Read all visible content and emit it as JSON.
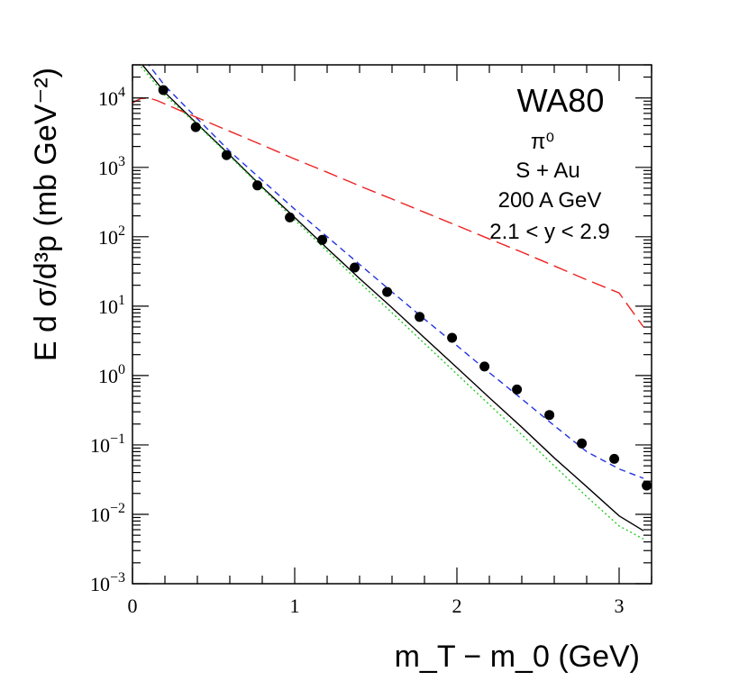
{
  "chart_data": {
    "type": "scatter",
    "title": "WA80",
    "annotations": [
      "π⁰",
      "S + Au",
      "200 A GeV",
      "2.1 < y < 2.9"
    ],
    "xlabel": "m_T − m_0 (GeV)",
    "ylabel": "E d σ/d³p (mb GeV⁻²)",
    "xlim": [
      0,
      3.2
    ],
    "ylim": [
      0.001,
      30000
    ],
    "yscale": "log",
    "x_ticks": [
      "0",
      "1",
      "2",
      "3"
    ],
    "y_ticks": [
      "10^-3",
      "10^-2",
      "10^-1",
      "10^0",
      "10^1",
      "10^2",
      "10^3",
      "10^4"
    ],
    "grid": false,
    "series": [
      {
        "kind": "points",
        "marker": "filled-circle",
        "color": "#000000",
        "x": [
          0.19,
          0.39,
          0.58,
          0.77,
          0.97,
          1.17,
          1.37,
          1.57,
          1.77,
          1.97,
          2.17,
          2.37,
          2.57,
          2.77,
          2.97,
          3.17
        ],
        "y": [
          13000,
          3800,
          1500,
          550,
          190,
          90,
          36,
          16,
          7,
          3.5,
          1.35,
          0.63,
          0.27,
          0.105,
          0.063,
          0.026
        ]
      },
      {
        "kind": "curve",
        "style": "solid",
        "color": "#000000",
        "x": [
          0,
          0.2,
          0.4,
          0.6,
          0.8,
          1.0,
          1.2,
          1.4,
          1.6,
          1.8,
          2.0,
          2.2,
          2.4,
          2.6,
          2.8,
          3.0,
          3.15
        ],
        "y": [
          45000,
          12000,
          4200,
          1500,
          520,
          190,
          68,
          25,
          9.5,
          3.5,
          1.3,
          0.48,
          0.18,
          0.065,
          0.025,
          0.0095,
          0.0058
        ]
      },
      {
        "kind": "curve",
        "style": "dotted",
        "color": "#22cc22",
        "x": [
          0,
          0.2,
          0.4,
          0.6,
          0.8,
          1.0,
          1.2,
          1.4,
          1.6,
          1.8,
          2.0,
          2.2,
          2.4,
          2.6,
          2.8,
          3.0,
          3.15
        ],
        "y": [
          40000,
          11000,
          4100,
          1450,
          500,
          175,
          62,
          22,
          8,
          2.9,
          1.05,
          0.38,
          0.14,
          0.05,
          0.018,
          0.0068,
          0.0044
        ]
      },
      {
        "kind": "curve",
        "style": "dashed",
        "color": "#2233dd",
        "x": [
          0,
          0.2,
          0.4,
          0.6,
          0.8,
          1.0,
          1.2,
          1.4,
          1.6,
          1.8,
          2.0,
          2.2,
          2.4,
          2.6,
          2.8,
          3.0,
          3.15
        ],
        "y": [
          60000,
          15000,
          5000,
          1700,
          650,
          250,
          100,
          40,
          16,
          6.5,
          2.7,
          1.1,
          0.46,
          0.19,
          0.08,
          0.045,
          0.033
        ]
      },
      {
        "kind": "curve",
        "style": "long-dashed",
        "color": "#ee2222",
        "x": [
          0,
          0.05,
          0.1,
          0.15,
          0.2,
          0.3,
          0.4,
          0.6,
          0.8,
          1.0,
          1.2,
          1.4,
          1.6,
          1.8,
          2.0,
          2.2,
          2.4,
          2.6,
          2.8,
          3.0,
          3.15
        ],
        "y": [
          8500,
          9800,
          10000,
          9200,
          8200,
          6500,
          5200,
          3300,
          2100,
          1320,
          850,
          540,
          350,
          225,
          145,
          93,
          60,
          38,
          24,
          15.5,
          5
        ]
      }
    ]
  }
}
